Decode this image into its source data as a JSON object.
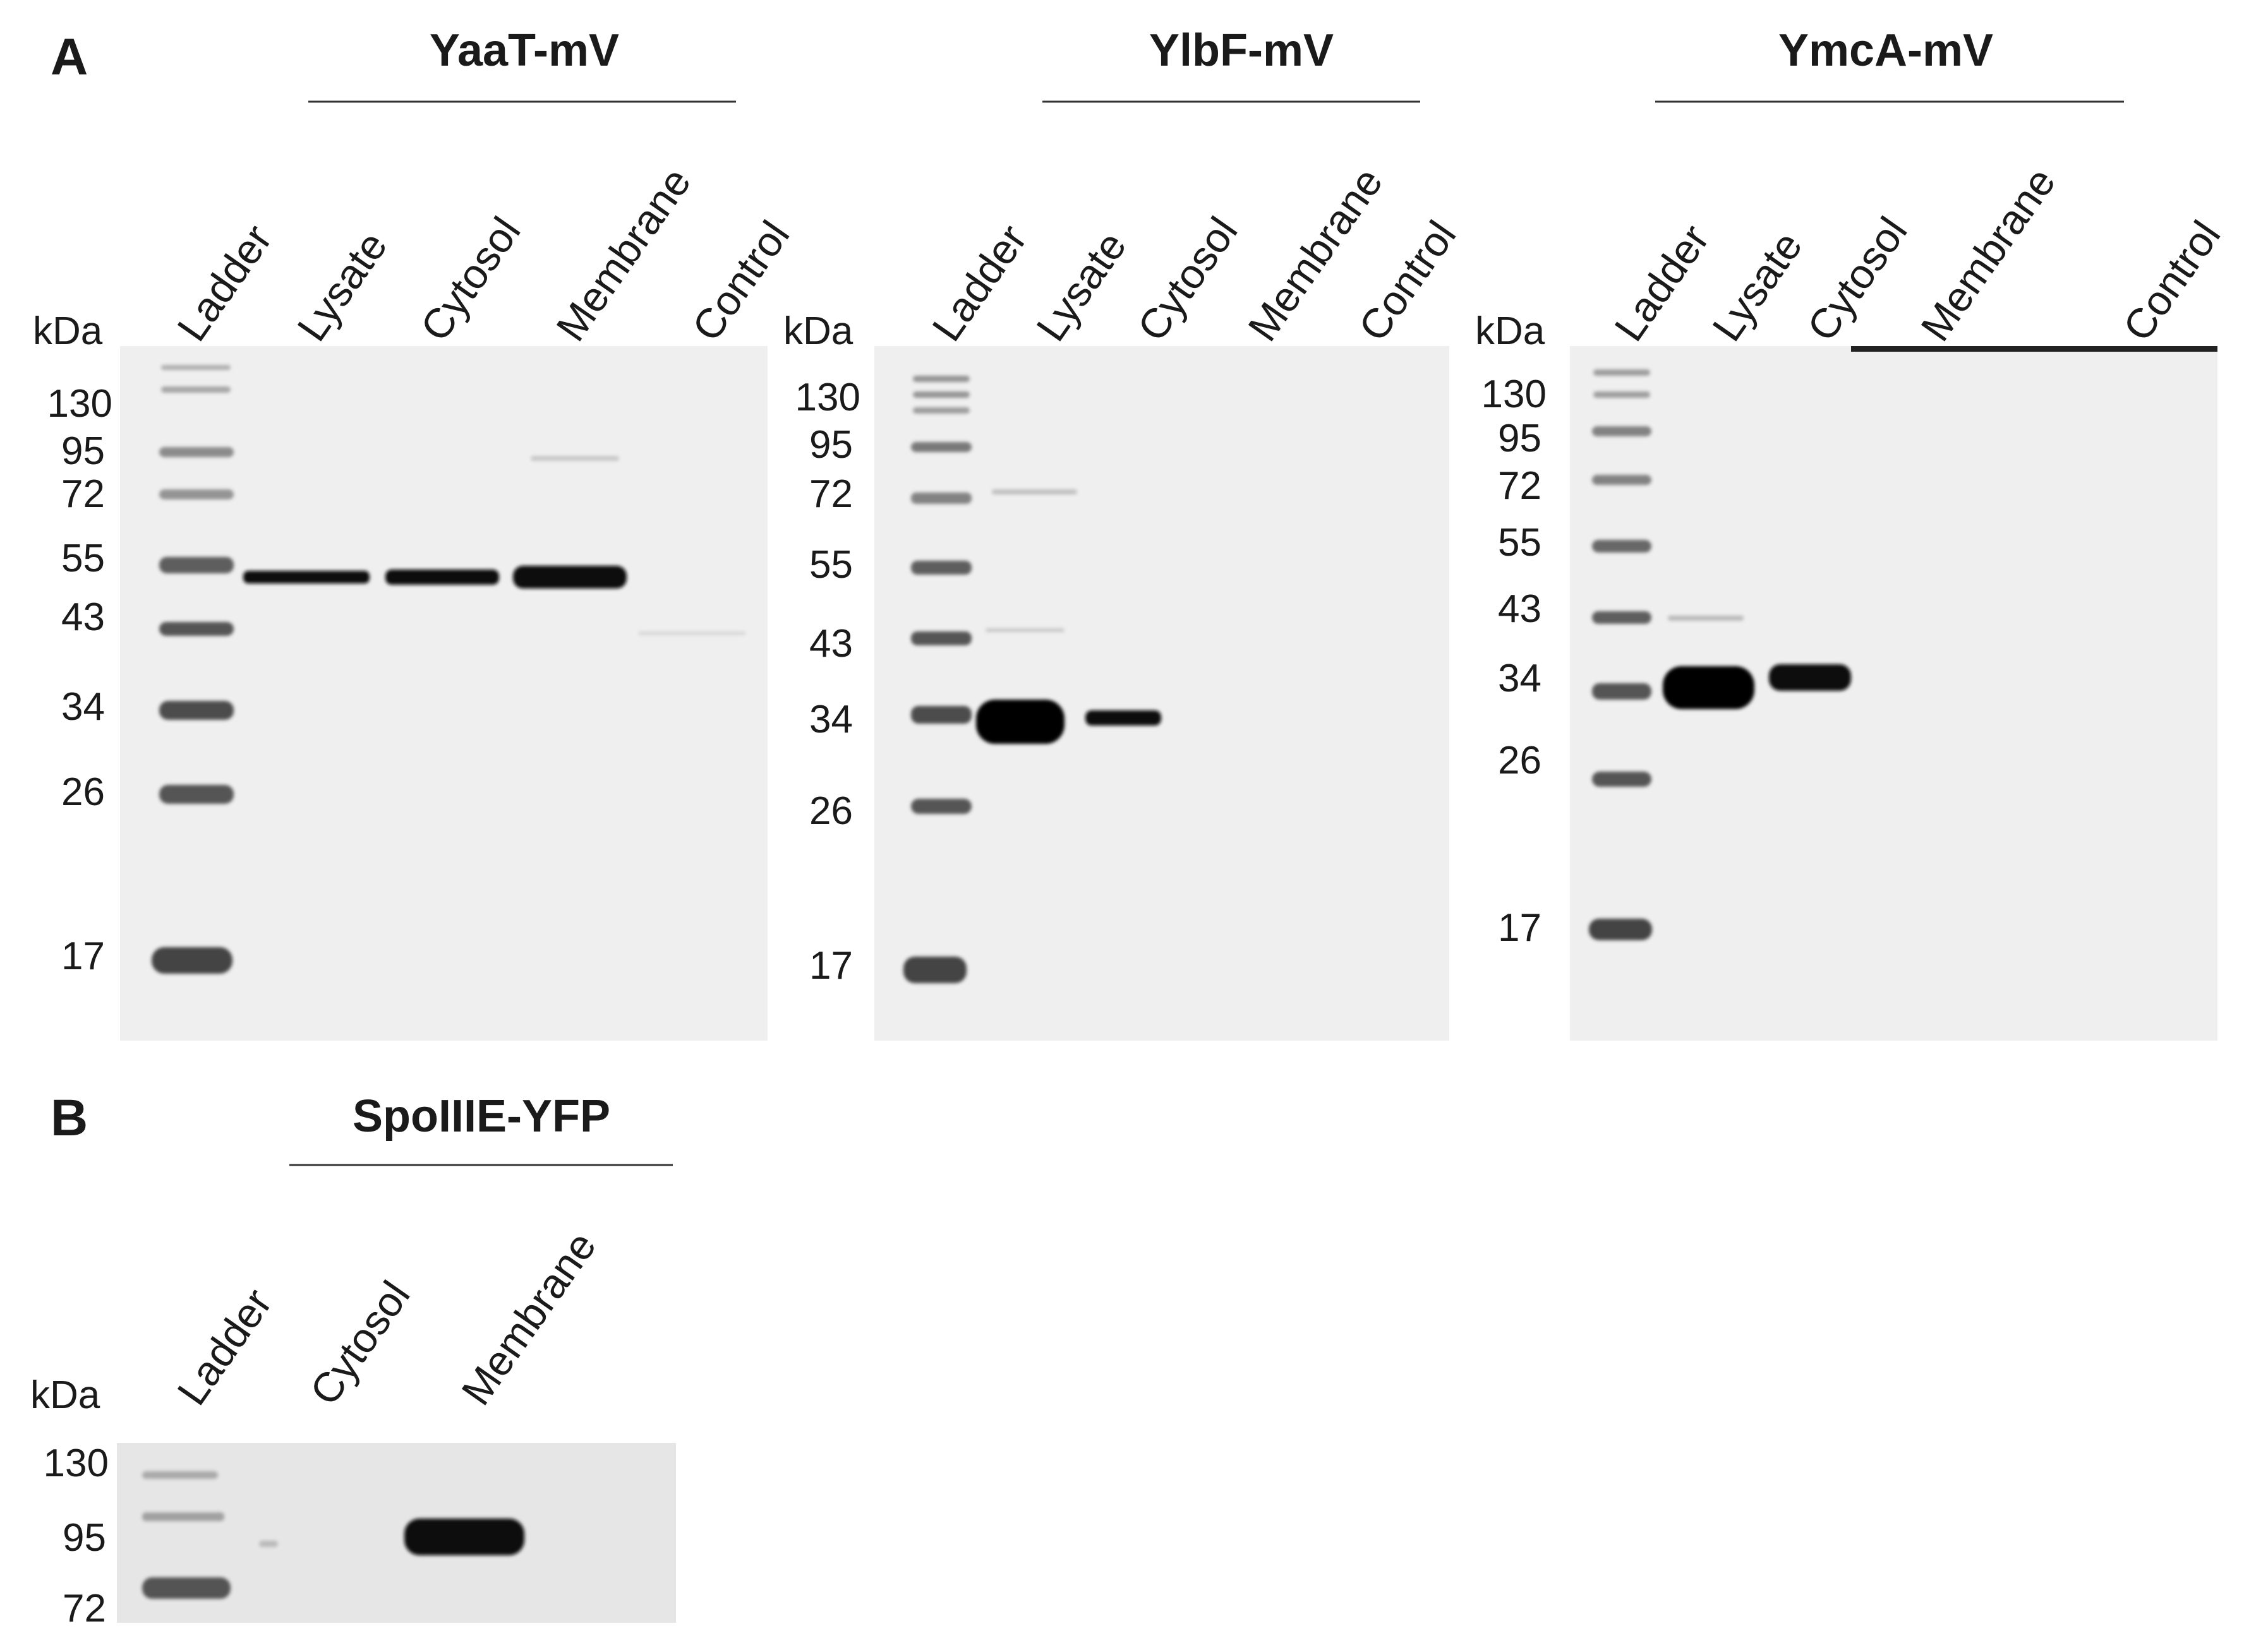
{
  "panel_a": {
    "letter": "A",
    "kda_label": "kDa",
    "blots": [
      {
        "title": "YaaT-mV",
        "lanes": [
          "Ladder",
          "Lysate",
          "Cytosol",
          "Membrane",
          "Control"
        ],
        "markers": [
          "130",
          "95",
          "72",
          "55",
          "43",
          "34",
          "26",
          "17"
        ]
      },
      {
        "title": "YlbF-mV",
        "lanes": [
          "Ladder",
          "Lysate",
          "Cytosol",
          "Membrane",
          "Control"
        ],
        "markers": [
          "130",
          "95",
          "72",
          "55",
          "43",
          "34",
          "26",
          "17"
        ]
      },
      {
        "title": "YmcA-mV",
        "lanes": [
          "Ladder",
          "Lysate",
          "Cytosol",
          "Membrane",
          "Control"
        ],
        "markers": [
          "130",
          "95",
          "72",
          "55",
          "43",
          "34",
          "26",
          "17"
        ]
      }
    ]
  },
  "panel_b": {
    "letter": "B",
    "kda_label": "kDa",
    "title": "SpoIIIE-YFP",
    "lanes": [
      "Ladder",
      "Cytosol",
      "Membrane"
    ],
    "markers": [
      "130",
      "95",
      "72"
    ]
  },
  "colors": {
    "blot_bg": "#efefef",
    "blot_bg_b": "#e6e6e6",
    "band": "#111111",
    "ladder_band": "#3a3a3a"
  }
}
